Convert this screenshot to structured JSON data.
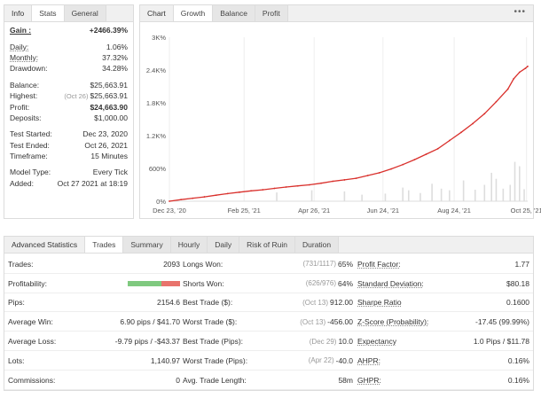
{
  "info": {
    "tabs": [
      "Info",
      "Stats",
      "General"
    ],
    "rows": [
      {
        "label": "Gain :",
        "value": "+2466.39%",
        "bold": true,
        "green": true
      },
      {
        "gap": true
      },
      {
        "label": "Daily:",
        "value": "1.06%",
        "u": true
      },
      {
        "label": "Monthly:",
        "value": "37.32%",
        "u": true
      },
      {
        "label": "Drawdown:",
        "value": "34.28%"
      },
      {
        "gap": true
      },
      {
        "label": "Balance:",
        "value": "$25,663.91"
      },
      {
        "label": "Highest:",
        "value": "$25,663.91",
        "note": "(Oct 26)"
      },
      {
        "label": "Profit:",
        "value": "$24,663.90",
        "green": true
      },
      {
        "label": "Deposits:",
        "value": "$1,000.00"
      },
      {
        "gap": true
      },
      {
        "label": "Test Started:",
        "value": "Dec 23, 2020"
      },
      {
        "label": "Test Ended:",
        "value": "Oct 26, 2021"
      },
      {
        "label": "Timeframe:",
        "value": "15 Minutes"
      },
      {
        "gap": true
      },
      {
        "label": "Model Type:",
        "value": "Every Tick"
      },
      {
        "label": "Added:",
        "value": "Oct 27 2021 at 18:19"
      }
    ]
  },
  "chart": {
    "tabs": [
      "Chart",
      "Growth",
      "Balance",
      "Profit"
    ],
    "menu": "•••"
  },
  "chart_data": {
    "type": "line",
    "y_ticks": [
      "3K%",
      "2.4K%",
      "1.8K%",
      "1.2K%",
      "600%",
      "0%"
    ],
    "y_tick_values": [
      3000,
      2400,
      1800,
      1200,
      600,
      0
    ],
    "ylim": [
      0,
      3000
    ],
    "x_ticks": [
      "Dec 23, '20",
      "Feb 25, '21",
      "Apr 26, '21",
      "Jun 24, '21",
      "Aug 24, '21",
      "Oct 25, '21"
    ],
    "x_tick_days": [
      0,
      64,
      124,
      183,
      244,
      306
    ],
    "x_range_days": [
      0,
      307
    ],
    "series": [
      {
        "color": "#d9302c",
        "x": [
          0,
          10,
          20,
          30,
          40,
          50,
          60,
          70,
          80,
          90,
          100,
          110,
          120,
          130,
          140,
          150,
          160,
          170,
          180,
          190,
          200,
          210,
          220,
          230,
          240,
          250,
          260,
          270,
          280,
          290,
          295,
          300,
          305,
          307
        ],
        "y": [
          0,
          30,
          55,
          80,
          110,
          140,
          165,
          190,
          210,
          235,
          260,
          280,
          300,
          330,
          365,
          390,
          420,
          470,
          520,
          590,
          670,
          760,
          860,
          960,
          1110,
          1260,
          1420,
          1600,
          1820,
          2050,
          2240,
          2360,
          2430,
          2466
        ]
      }
    ],
    "volume_bars": {
      "color": "#dddddd",
      "x": [
        92,
        122,
        150,
        165,
        185,
        200,
        205,
        215,
        225,
        233,
        240,
        252,
        262,
        270,
        276,
        280,
        286,
        292,
        296,
        300,
        304
      ],
      "y": [
        160,
        200,
        180,
        120,
        140,
        250,
        200,
        150,
        320,
        230,
        200,
        380,
        210,
        300,
        520,
        410,
        230,
        300,
        720,
        640,
        220
      ]
    },
    "grid": "vertical"
  },
  "adv": {
    "tabs": [
      "Advanced Statistics",
      "Trades",
      "Summary",
      "Hourly",
      "Daily",
      "Risk of Ruin",
      "Duration"
    ],
    "profitability": {
      "win_fraction": 0.64
    },
    "rows": [
      [
        {
          "label": "Trades:",
          "value": "2093"
        },
        {
          "label": "Longs Won:",
          "value": "65%",
          "note": "(731/1117)"
        },
        {
          "label": "Profit Factor:",
          "value": "1.77",
          "u": true
        }
      ],
      [
        {
          "label": "Profitability:",
          "value": ""
        },
        {
          "label": "Shorts Won:",
          "value": "64%",
          "note": "(626/976)"
        },
        {
          "label": "Standard Deviation:",
          "value": "$80.18",
          "u": true
        }
      ],
      [
        {
          "label": "Pips:",
          "value": "2154.6"
        },
        {
          "label": "Best Trade ($):",
          "value": "912.00",
          "note": "(Oct 13)"
        },
        {
          "label": "Sharpe Ratio",
          "value": "0.1600",
          "u": true
        }
      ],
      [
        {
          "label": "Average Win:",
          "value": "6.90 pips / $41.70"
        },
        {
          "label": "Worst Trade ($):",
          "value": "-456.00",
          "note": "(Oct 13)"
        },
        {
          "label": "Z-Score (Probability):",
          "value": "-17.45 (99.99%)",
          "u": true
        }
      ],
      [
        {
          "label": "Average Loss:",
          "value": "-9.79 pips / -$43.37"
        },
        {
          "label": "Best Trade (Pips):",
          "value": "10.0",
          "note": "(Dec 29)"
        },
        {
          "label": "Expectancy",
          "value": "1.0 Pips / $11.78",
          "u": true
        }
      ],
      [
        {
          "label": "Lots:",
          "value": "1,140.97"
        },
        {
          "label": "Worst Trade (Pips):",
          "value": "-40.0",
          "note": "(Apr 22)"
        },
        {
          "label": "AHPR:",
          "value": "0.16%",
          "u": true
        }
      ],
      [
        {
          "label": "Commissions:",
          "value": "0"
        },
        {
          "label": "Avg. Trade Length:",
          "value": "58m"
        },
        {
          "label": "GHPR:",
          "value": "0.16%",
          "u": true
        }
      ]
    ]
  }
}
